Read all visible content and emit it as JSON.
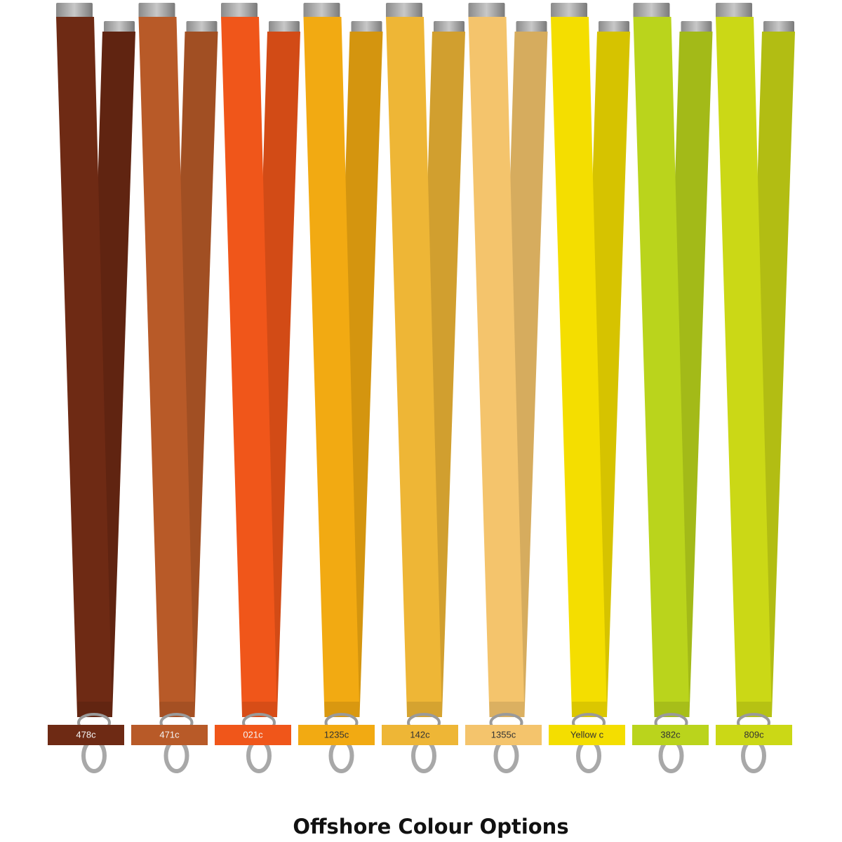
{
  "title": "Offshore Colour Options",
  "swatches": [
    {
      "label": "478c",
      "color": "#6e2a14"
    },
    {
      "label": "471c",
      "color": "#b85a28"
    },
    {
      "label": "021c",
      "color": "#f0561a"
    },
    {
      "label": "1235c",
      "color": "#f2aa12"
    },
    {
      "label": "142c",
      "color": "#eeb636"
    },
    {
      "label": "1355c",
      "color": "#f4c46c"
    },
    {
      "label": "Yellow c",
      "color": "#f4de00"
    },
    {
      "label": "382c",
      "color": "#bad41c"
    },
    {
      "label": "809c",
      "color": "#cbd816"
    }
  ]
}
